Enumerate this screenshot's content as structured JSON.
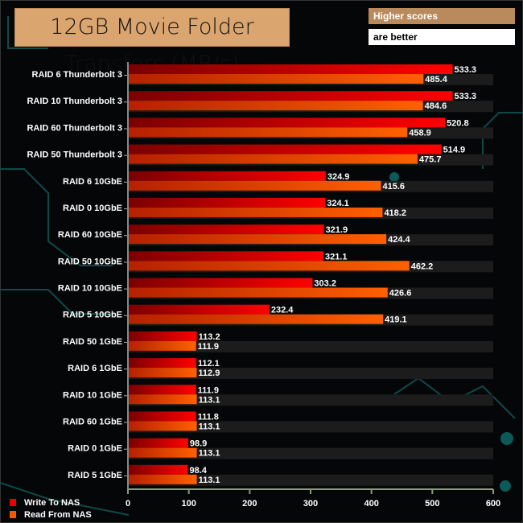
{
  "chart_data": {
    "type": "bar",
    "orientation": "horizontal",
    "title": "12GB Movie Folder Transfers (MB/s)",
    "note": [
      "Higher scores",
      "are better"
    ],
    "categories": [
      "RAID 6 Thunderbolt 3",
      "RAID 10 Thunderbolt 3",
      "RAID 60 Thunderbolt 3",
      "RAID 50 Thunderbolt 3",
      "RAID 6 10GbE",
      "RAID 0 10GbE",
      "RAID 60 10GbE",
      "RAID 50 10GbE",
      "RAID 10 10GbE",
      "RAID 5 10GbE",
      "RAID 50 1GbE",
      "RAID 6 1GbE",
      "RAID 10 1GbE",
      "RAID 60 1GbE",
      "RAID 0 1GbE",
      "RAID 5 1GbE"
    ],
    "series": [
      {
        "name": "Write To NAS",
        "color": "#ee0000",
        "values": [
          533.3,
          533.3,
          520.8,
          514.9,
          324.9,
          324.1,
          321.9,
          321.1,
          303.2,
          232.4,
          113.2,
          112.1,
          111.9,
          111.8,
          98.9,
          98.4
        ]
      },
      {
        "name": "Read From NAS",
        "color": "#f05a00",
        "values": [
          485.4,
          484.6,
          458.9,
          475.7,
          415.6,
          418.2,
          424.4,
          462.2,
          426.6,
          419.1,
          111.9,
          112.9,
          113.1,
          113.1,
          113.1,
          113.1
        ]
      }
    ],
    "xlim": [
      0,
      600
    ],
    "xticks": [
      "0",
      "100",
      "200",
      "300",
      "400",
      "500",
      "600"
    ],
    "legend": "bottom-left",
    "grid": false
  }
}
